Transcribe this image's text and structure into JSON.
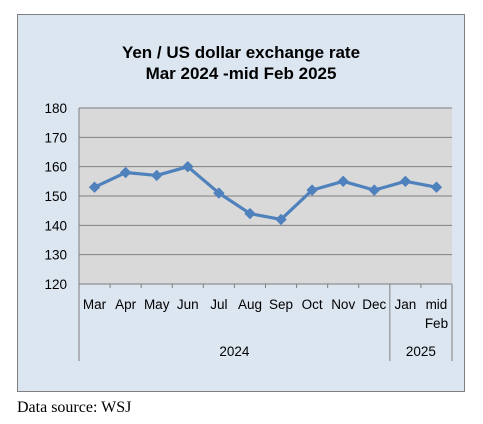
{
  "chart_data": {
    "type": "line",
    "title": "Yen / US dollar exchange rate",
    "subtitle": "Mar 2024 -mid Feb 2025",
    "categories": [
      [
        "Mar"
      ],
      [
        "Apr"
      ],
      [
        "May"
      ],
      [
        "Jun"
      ],
      [
        "Jul"
      ],
      [
        "Aug"
      ],
      [
        "Sep"
      ],
      [
        "Oct"
      ],
      [
        "Nov"
      ],
      [
        "Dec"
      ],
      [
        "Jan"
      ],
      [
        "mid",
        "Feb"
      ]
    ],
    "groups": [
      {
        "label": "2024",
        "count": 10
      },
      {
        "label": "2025",
        "count": 2
      }
    ],
    "values": [
      153,
      158,
      157,
      160,
      151,
      144,
      142,
      152,
      155,
      152,
      155,
      153
    ],
    "ylim": [
      120,
      180
    ],
    "yticks": [
      120,
      130,
      140,
      150,
      160,
      170,
      180
    ],
    "grid": true,
    "line_color": "#4f81bd",
    "plot_bg": "#d9d9d9",
    "frame_bg": "#dce6f1"
  },
  "source": "Data source: WSJ"
}
